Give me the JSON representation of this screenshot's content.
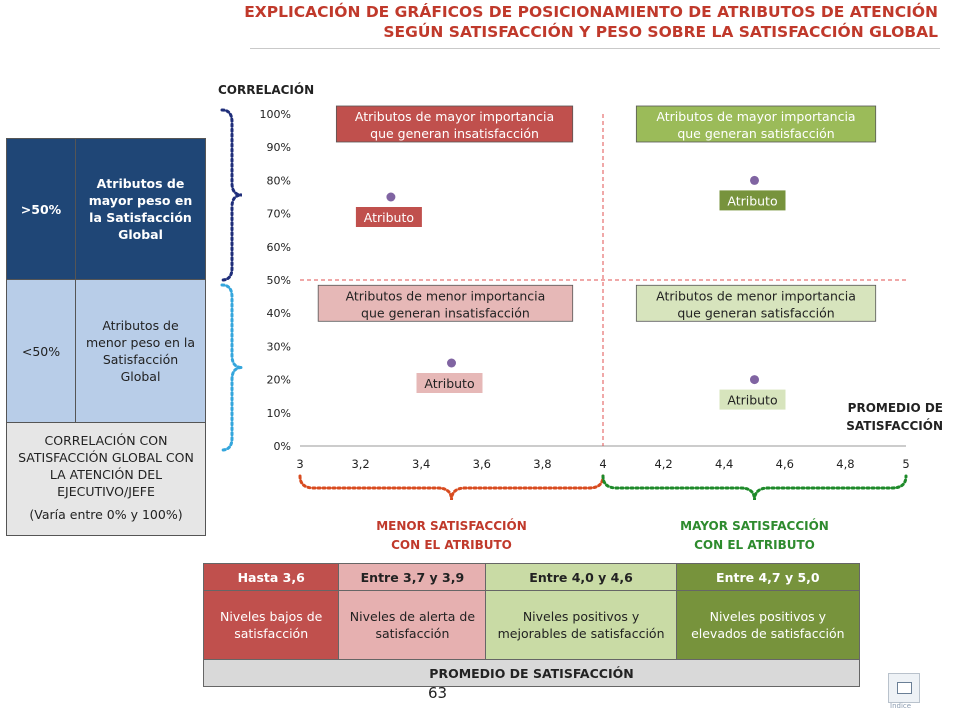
{
  "title": {
    "line1": "EXPLICACIÓN DE GRÁFICOS DE POSICIONAMIENTO DE ATRIBUTOS DE ATENCIÓN",
    "line2": "SEGÚN SATISFACCIÓN Y PESO SOBRE LA SATISFACCIÓN GLOBAL"
  },
  "left_table": {
    "row1_pct": ">50%",
    "row1_text": "Atributos de mayor peso en la Satisfacción Global",
    "row2_pct": "<50%",
    "row2_text": "Atributos de menor peso en la Satisfacción Global",
    "corr_text": "CORRELACIÓN CON SATISFACCIÓN GLOBAL CON LA ATENCIÓN DEL EJECUTIVO/JEFE",
    "corr_note": "(Varía entre 0% y 100%)"
  },
  "chart_data": {
    "type": "scatter",
    "ylabel": "CORRELACIÓN",
    "xlabel": "PROMEDIO DE SATISFACCIÓN",
    "xlim": [
      3,
      5
    ],
    "ylim": [
      0,
      1
    ],
    "x_ticks": [
      "3",
      "3,2",
      "3,4",
      "3,6",
      "3,8",
      "4",
      "4,2",
      "4,4",
      "4,6",
      "4,8",
      "5"
    ],
    "y_ticks": [
      "0%",
      "10%",
      "20%",
      "30%",
      "40%",
      "50%",
      "60%",
      "70%",
      "80%",
      "90%",
      "100%"
    ],
    "reference_lines": {
      "x": 4,
      "y": 0.5
    },
    "quadrant_labels": [
      {
        "text": "Atributos de mayor importancia que generan insatisfacción",
        "color": "#c0504d",
        "text_color": "#ffffff",
        "quadrant": "top-left"
      },
      {
        "text": "Atributos de mayor importancia que generan satisfacción",
        "color": "#9bbb59",
        "text_color": "#ffffff",
        "quadrant": "top-right"
      },
      {
        "text": "Atributos de menor importancia que generan insatisfacción",
        "color": "#e6b8b7",
        "text_color": "#222222",
        "quadrant": "bottom-left"
      },
      {
        "text": "Atributos de menor importancia que generan satisfacción",
        "color": "#d7e4bd",
        "text_color": "#222222",
        "quadrant": "bottom-right"
      }
    ],
    "points": [
      {
        "x": 3.3,
        "y": 0.75,
        "label": "Atributo",
        "label_color": "#c0504d",
        "label_text_color": "#ffffff"
      },
      {
        "x": 4.5,
        "y": 0.8,
        "label": "Atributo",
        "label_color": "#77933c",
        "label_text_color": "#ffffff"
      },
      {
        "x": 3.5,
        "y": 0.25,
        "label": "Atributo",
        "label_color": "#e6b8b7",
        "label_text_color": "#222222"
      },
      {
        "x": 4.5,
        "y": 0.2,
        "label": "Atributo",
        "label_color": "#d7e4bd",
        "label_text_color": "#222222"
      }
    ],
    "point_color": "#8064a2",
    "grid": false,
    "region_notes": {
      "left": "MENOR SATISFACCIÓN CON EL ATRIBUTO",
      "right": "MAYOR SATISFACCIÓN CON EL ATRIBUTO"
    },
    "colors": {
      "dashed_line": "#e05050",
      "brace_top": "#1f2e7a",
      "brace_bottom": "#35a6dc",
      "brace_left_x": "#d84b1f",
      "brace_right_x": "#1e8a2a",
      "note_left": "#c0392b",
      "note_right": "#2e8b2e"
    }
  },
  "bottom_table": {
    "headers": [
      "Hasta 3,6",
      "Entre 3,7 y 3,9",
      "Entre 4,0 y 4,6",
      "Entre 4,7 y 5,0"
    ],
    "cells": [
      "Niveles bajos de satisfacción",
      "Niveles de alerta de satisfacción",
      "Niveles positivos y mejorables de satisfacción",
      "Niveles positivos y elevados de satisfacción"
    ],
    "footer": "PROMEDIO DE SATISFACCIÓN"
  },
  "page_number": "63",
  "nav": {
    "label": "Indice",
    "icon": "document-icon"
  }
}
